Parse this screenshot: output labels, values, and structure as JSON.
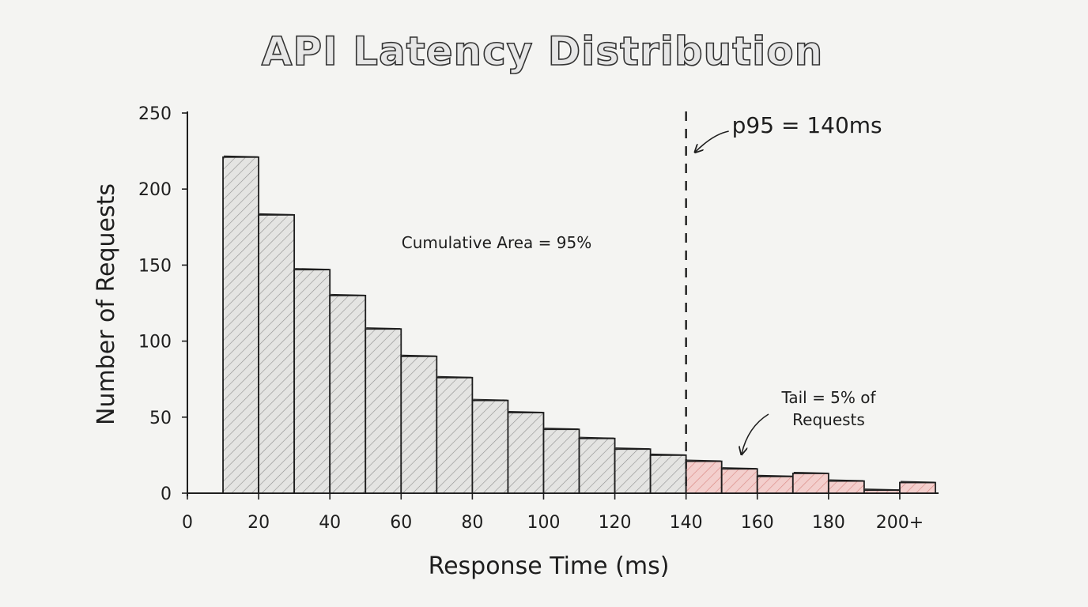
{
  "chart_data": {
    "type": "bar",
    "title": "API Latency Distribution",
    "xlabel": "Response Time (ms)",
    "ylabel": "Number of Requests",
    "bin_edges": [
      10,
      20,
      30,
      40,
      50,
      60,
      70,
      80,
      90,
      100,
      110,
      120,
      130,
      140,
      150,
      160,
      170,
      180,
      190,
      200,
      210
    ],
    "values": [
      221,
      183,
      147,
      130,
      108,
      90,
      76,
      61,
      53,
      42,
      36,
      29,
      25,
      21,
      16,
      11,
      13,
      8,
      2,
      7
    ],
    "highlight_from": 140,
    "xlim": [
      0,
      210
    ],
    "ylim": [
      0,
      250
    ],
    "x_ticks": [
      {
        "value": 0,
        "label": "0"
      },
      {
        "value": 20,
        "label": "20"
      },
      {
        "value": 40,
        "label": "40"
      },
      {
        "value": 60,
        "label": "60"
      },
      {
        "value": 80,
        "label": "80"
      },
      {
        "value": 100,
        "label": "100"
      },
      {
        "value": 120,
        "label": "120"
      },
      {
        "value": 140,
        "label": "140"
      },
      {
        "value": 160,
        "label": "160"
      },
      {
        "value": 180,
        "label": "180"
      },
      {
        "value": 200,
        "label": "200+"
      }
    ],
    "y_ticks": [
      0,
      50,
      100,
      150,
      200,
      250
    ],
    "percentile_line": {
      "value": 140,
      "label": "p95 = 140ms"
    },
    "annotations": {
      "cumulative": "Cumulative Area = 95%",
      "tail_line1": "Tail = 5% of",
      "tail_line2": "Requests"
    },
    "colors": {
      "body_fill": "#e2e2e0",
      "tail_fill": "#f2c8c6",
      "tail_hatch": "#d98580",
      "hatch": "#8f8f8f",
      "ink": "#1e1e1e"
    }
  }
}
